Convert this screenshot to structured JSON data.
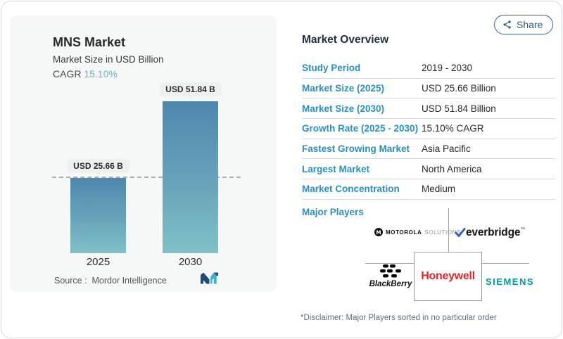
{
  "share": {
    "label": "Share"
  },
  "left_card": {
    "title": "MNS Market",
    "subtitle": "Market Size in USD Billion",
    "cagr_label": "CAGR",
    "cagr_value": "15.10%",
    "source_label": "Source :",
    "source_value": "Mordor Intelligence"
  },
  "chart_data": {
    "type": "bar",
    "title": "MNS Market",
    "subtitle": "Market Size in USD Billion",
    "unit": "USD Billion",
    "categories": [
      "2025",
      "2030"
    ],
    "values": [
      25.66,
      51.84
    ],
    "bar_labels": [
      "USD 25.66 B",
      "USD 51.84 B"
    ],
    "cagr": "15.10%",
    "ylim": [
      0,
      51.84
    ],
    "reference_line": 25.66,
    "grid": false,
    "bar_gradient": [
      "#4e87ae",
      "#7fc1c6"
    ]
  },
  "overview": {
    "heading": "Market Overview",
    "rows": [
      {
        "label": "Study Period",
        "value": "2019 - 2030"
      },
      {
        "label": "Market Size (2025)",
        "value": "USD 25.66 Billion"
      },
      {
        "label": "Market Size (2030)",
        "value": "USD 51.84 Billion"
      },
      {
        "label": "Growth Rate (2025 - 2030)",
        "value": "15.10% CAGR"
      },
      {
        "label": "Fastest Growing Market",
        "value": "Asia Pacific"
      },
      {
        "label": "Largest Market",
        "value": "North America"
      },
      {
        "label": "Market Concentration",
        "value": "Medium"
      }
    ],
    "major_players_label": "Major Players",
    "players": [
      "Motorola Solutions",
      "Everbridge",
      "BlackBerry",
      "Honeywell",
      "Siemens"
    ],
    "logos": {
      "motorola_brand": "MOTOROLA",
      "motorola_suffix": "SOLUTIONS",
      "everbridge": "everbridge",
      "everbridge_tm": "™",
      "blackberry": "BlackBerry",
      "honeywell": "Honeywell",
      "siemens": "SIEMENS"
    },
    "disclaimer": "*Disclaimer: Major Players sorted in no particular order"
  },
  "colors": {
    "accent_blue": "#2a8fc3",
    "heading_navy": "#1e2d40",
    "cagr_light_blue": "#6cb0cc",
    "bar_top": "#4e87ae",
    "bar_bottom": "#7fc1c6",
    "share": "#2d5d7b",
    "honeywell_red": "#e1252b",
    "siemens_teal": "#009999",
    "everbridge_blue": "#2e62c8",
    "mordor_navy": "#1d4b7e",
    "mordor_teal": "#38b6c6"
  }
}
